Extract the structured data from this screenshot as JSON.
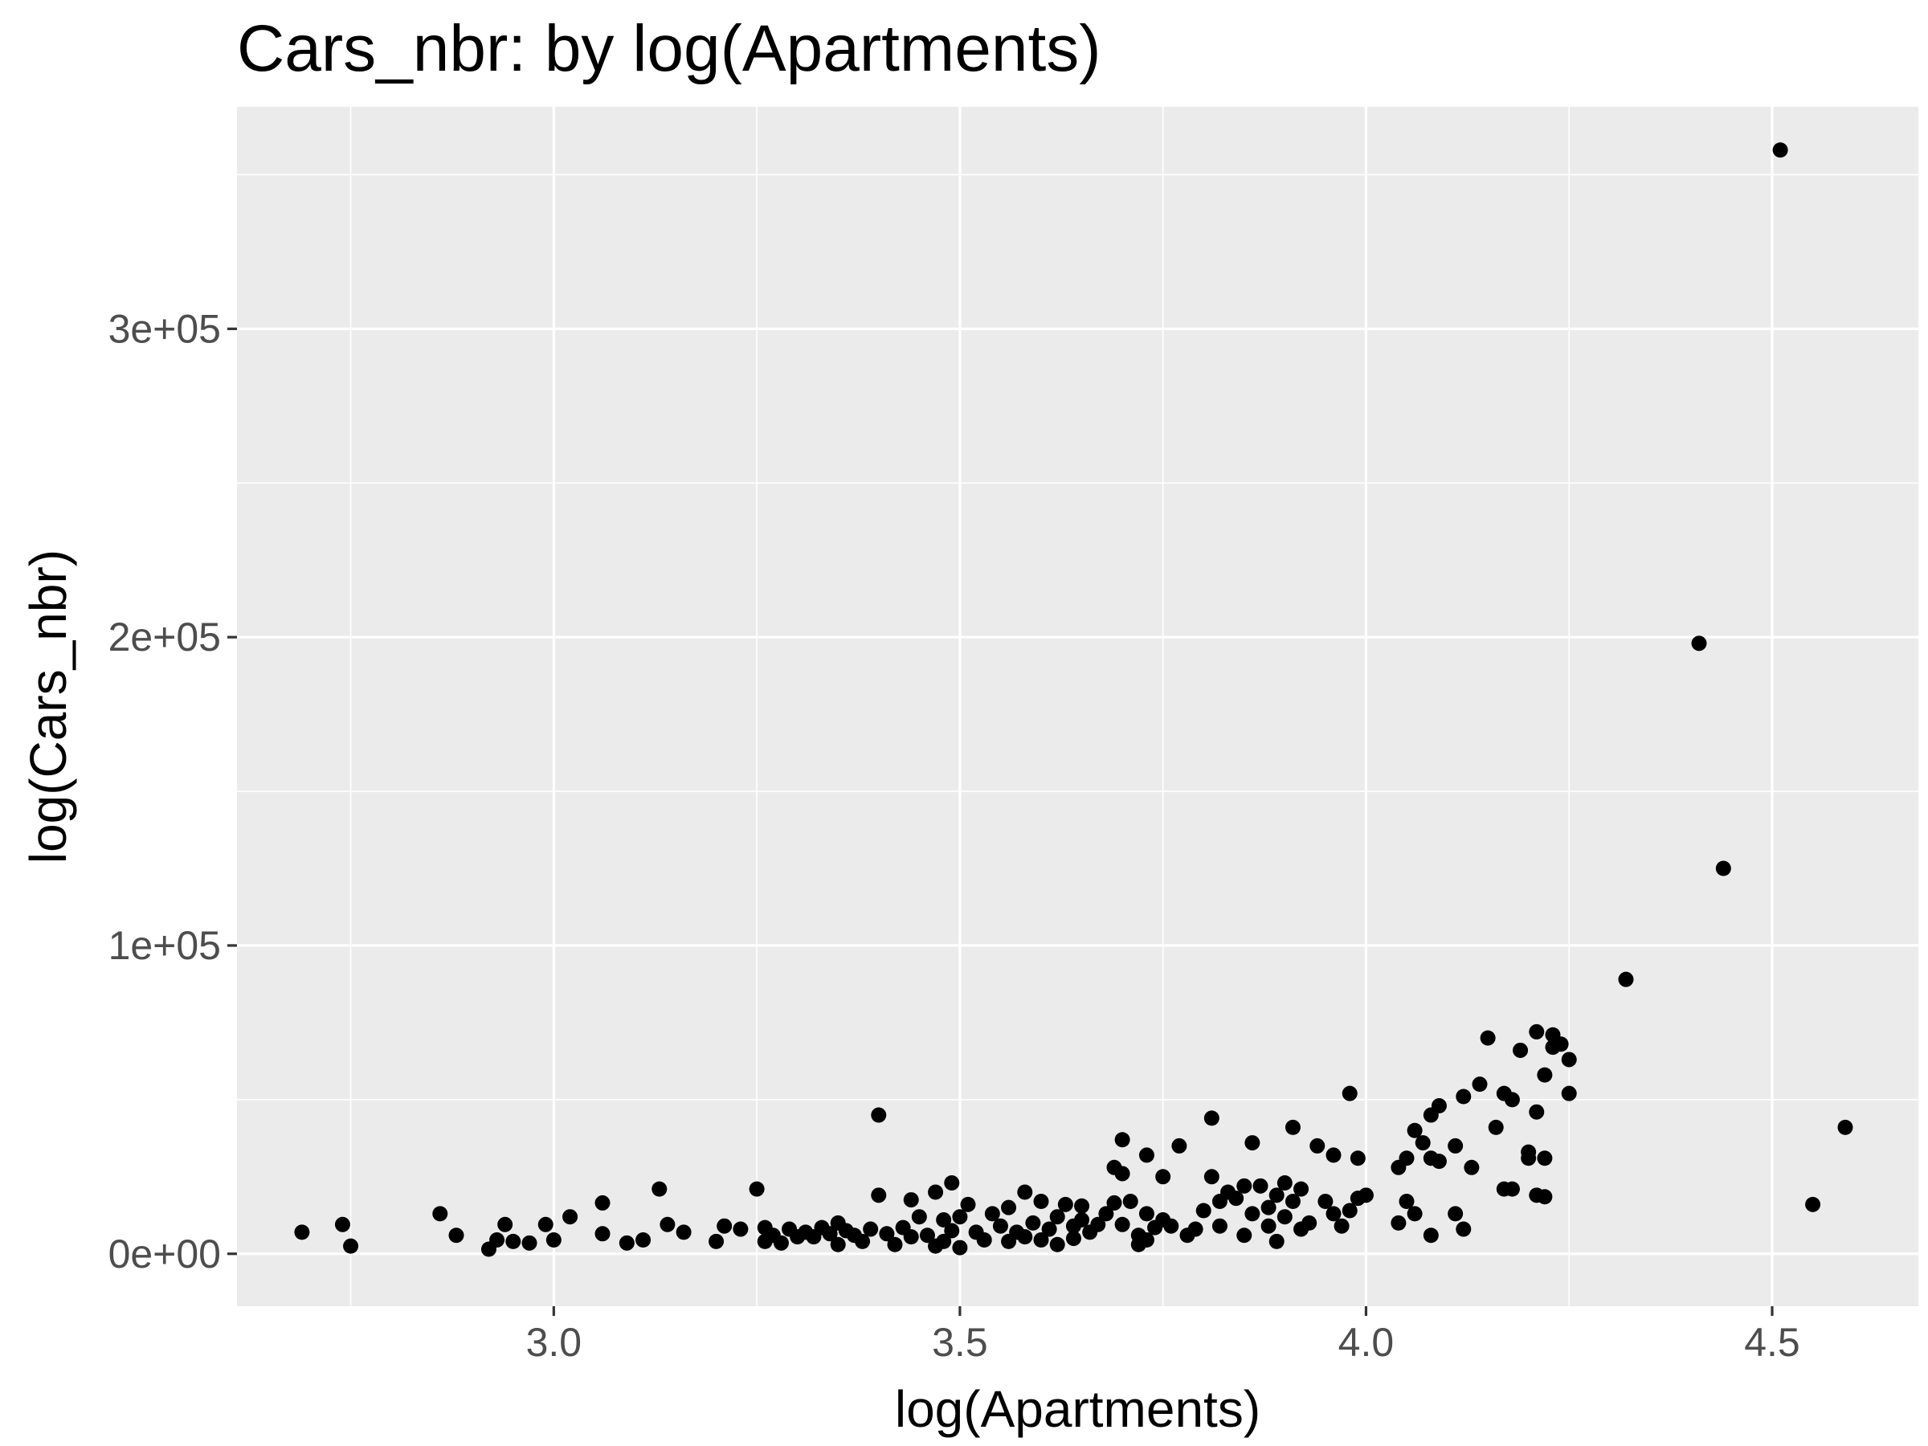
{
  "chart_data": {
    "type": "scatter",
    "title": "Cars_nbr: by log(Apartments)",
    "xlabel": "log(Apartments)",
    "ylabel": "log(Cars_nbr)",
    "xlim": [
      2.61,
      4.68
    ],
    "ylim": [
      -17000,
      372000
    ],
    "x_ticks": [
      3.0,
      3.5,
      4.0,
      4.5
    ],
    "x_tick_labels": [
      "3.0",
      "3.5",
      "4.0",
      "4.5"
    ],
    "y_ticks": [
      0,
      100000,
      200000,
      300000
    ],
    "y_tick_labels": [
      "0e+00",
      "1e+05",
      "2e+05",
      "3e+05"
    ],
    "grid": true,
    "legend": "none",
    "colors": {
      "panel": "#ebebeb",
      "grid": "#ffffff",
      "point": "#000000"
    },
    "points": [
      [
        2.69,
        7000
      ],
      [
        2.74,
        9500
      ],
      [
        2.75,
        2500
      ],
      [
        2.86,
        13000
      ],
      [
        2.88,
        6000
      ],
      [
        2.92,
        1500
      ],
      [
        2.93,
        4500
      ],
      [
        2.94,
        9500
      ],
      [
        2.95,
        4000
      ],
      [
        2.97,
        3500
      ],
      [
        2.99,
        9500
      ],
      [
        3.0,
        4500
      ],
      [
        3.02,
        12000
      ],
      [
        3.06,
        6500
      ],
      [
        3.06,
        16500
      ],
      [
        3.09,
        3500
      ],
      [
        3.11,
        4500
      ],
      [
        3.13,
        21000
      ],
      [
        3.14,
        9500
      ],
      [
        3.16,
        7000
      ],
      [
        3.2,
        4000
      ],
      [
        3.21,
        9000
      ],
      [
        3.23,
        8000
      ],
      [
        3.25,
        21000
      ],
      [
        3.26,
        4000
      ],
      [
        3.26,
        8500
      ],
      [
        3.27,
        6000
      ],
      [
        3.28,
        3500
      ],
      [
        3.29,
        8000
      ],
      [
        3.3,
        5500
      ],
      [
        3.31,
        7000
      ],
      [
        3.32,
        5500
      ],
      [
        3.33,
        8500
      ],
      [
        3.34,
        6500
      ],
      [
        3.35,
        10000
      ],
      [
        3.35,
        3000
      ],
      [
        3.36,
        7500
      ],
      [
        3.37,
        6000
      ],
      [
        3.38,
        4000
      ],
      [
        3.39,
        8000
      ],
      [
        3.4,
        45000
      ],
      [
        3.4,
        19000
      ],
      [
        3.41,
        6500
      ],
      [
        3.42,
        3000
      ],
      [
        3.43,
        8500
      ],
      [
        3.44,
        5500
      ],
      [
        3.44,
        17500
      ],
      [
        3.45,
        12000
      ],
      [
        3.46,
        6000
      ],
      [
        3.47,
        2500
      ],
      [
        3.47,
        20000
      ],
      [
        3.48,
        11000
      ],
      [
        3.48,
        4000
      ],
      [
        3.49,
        7500
      ],
      [
        3.49,
        23000
      ],
      [
        3.5,
        12000
      ],
      [
        3.5,
        2000
      ],
      [
        3.51,
        16000
      ],
      [
        3.52,
        7000
      ],
      [
        3.53,
        4500
      ],
      [
        3.54,
        13000
      ],
      [
        3.55,
        9000
      ],
      [
        3.56,
        4000
      ],
      [
        3.56,
        15000
      ],
      [
        3.57,
        7000
      ],
      [
        3.58,
        5500
      ],
      [
        3.58,
        20000
      ],
      [
        3.59,
        10000
      ],
      [
        3.6,
        17000
      ],
      [
        3.6,
        4500
      ],
      [
        3.61,
        8000
      ],
      [
        3.62,
        12000
      ],
      [
        3.62,
        3000
      ],
      [
        3.63,
        16000
      ],
      [
        3.64,
        9000
      ],
      [
        3.64,
        5000
      ],
      [
        3.65,
        11000
      ],
      [
        3.65,
        15500
      ],
      [
        3.66,
        7000
      ],
      [
        3.67,
        9500
      ],
      [
        3.68,
        13000
      ],
      [
        3.69,
        28000
      ],
      [
        3.69,
        16500
      ],
      [
        3.7,
        9500
      ],
      [
        3.7,
        37000
      ],
      [
        3.7,
        26000
      ],
      [
        3.71,
        17000
      ],
      [
        3.72,
        6000
      ],
      [
        3.72,
        3000
      ],
      [
        3.73,
        4500
      ],
      [
        3.73,
        13000
      ],
      [
        3.73,
        32000
      ],
      [
        3.74,
        8500
      ],
      [
        3.75,
        25000
      ],
      [
        3.75,
        11000
      ],
      [
        3.76,
        9000
      ],
      [
        3.77,
        35000
      ],
      [
        3.78,
        6000
      ],
      [
        3.79,
        8000
      ],
      [
        3.8,
        14000
      ],
      [
        3.81,
        25000
      ],
      [
        3.81,
        44000
      ],
      [
        3.82,
        17000
      ],
      [
        3.82,
        9000
      ],
      [
        3.83,
        20000
      ],
      [
        3.84,
        18000
      ],
      [
        3.85,
        22000
      ],
      [
        3.85,
        6000
      ],
      [
        3.86,
        13000
      ],
      [
        3.86,
        36000
      ],
      [
        3.87,
        22000
      ],
      [
        3.88,
        9000
      ],
      [
        3.88,
        15000
      ],
      [
        3.89,
        4000
      ],
      [
        3.89,
        19000
      ],
      [
        3.9,
        23000
      ],
      [
        3.9,
        12000
      ],
      [
        3.91,
        41000
      ],
      [
        3.91,
        17000
      ],
      [
        3.92,
        8000
      ],
      [
        3.92,
        21000
      ],
      [
        3.93,
        10000
      ],
      [
        3.94,
        35000
      ],
      [
        3.95,
        17000
      ],
      [
        3.96,
        32000
      ],
      [
        3.96,
        13000
      ],
      [
        3.97,
        9000
      ],
      [
        3.98,
        52000
      ],
      [
        3.98,
        14000
      ],
      [
        3.99,
        18000
      ],
      [
        3.99,
        31000
      ],
      [
        4.0,
        19000
      ],
      [
        4.04,
        28000
      ],
      [
        4.04,
        10000
      ],
      [
        4.05,
        17000
      ],
      [
        4.05,
        31000
      ],
      [
        4.06,
        13000
      ],
      [
        4.06,
        40000
      ],
      [
        4.07,
        36000
      ],
      [
        4.08,
        45000
      ],
      [
        4.08,
        6000
      ],
      [
        4.08,
        31000
      ],
      [
        4.09,
        48000
      ],
      [
        4.09,
        30000
      ],
      [
        4.11,
        35000
      ],
      [
        4.11,
        13000
      ],
      [
        4.12,
        8000
      ],
      [
        4.12,
        51000
      ],
      [
        4.13,
        28000
      ],
      [
        4.14,
        55000
      ],
      [
        4.15,
        70000
      ],
      [
        4.16,
        41000
      ],
      [
        4.17,
        21000
      ],
      [
        4.17,
        52000
      ],
      [
        4.18,
        50000
      ],
      [
        4.18,
        21000
      ],
      [
        4.19,
        66000
      ],
      [
        4.2,
        31000
      ],
      [
        4.2,
        33000
      ],
      [
        4.21,
        19000
      ],
      [
        4.21,
        46000
      ],
      [
        4.21,
        72000
      ],
      [
        4.22,
        18500
      ],
      [
        4.22,
        31000
      ],
      [
        4.22,
        58000
      ],
      [
        4.23,
        67000
      ],
      [
        4.23,
        71000
      ],
      [
        4.24,
        68000
      ],
      [
        4.25,
        52000
      ],
      [
        4.25,
        63000
      ],
      [
        4.32,
        89000
      ],
      [
        4.41,
        198000
      ],
      [
        4.44,
        125000
      ],
      [
        4.51,
        358000
      ],
      [
        4.55,
        16000
      ],
      [
        4.59,
        41000
      ]
    ]
  }
}
